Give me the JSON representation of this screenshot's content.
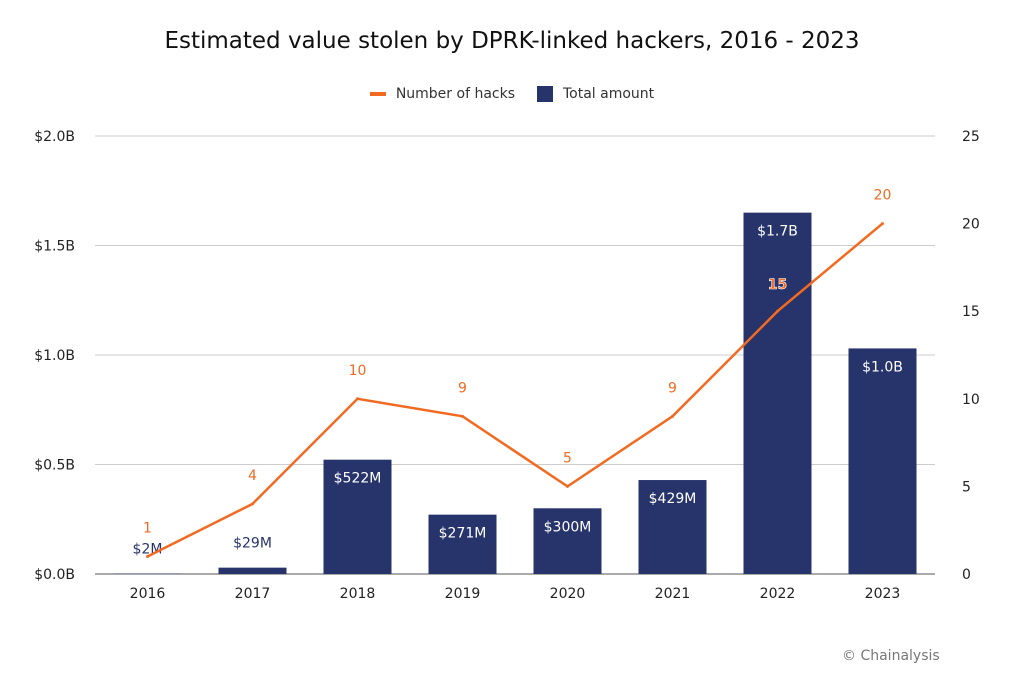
{
  "chart_data": {
    "type": "bar",
    "title": "Estimated value stolen by DPRK-linked hackers, 2016 - 2023",
    "categories": [
      "2016",
      "2017",
      "2018",
      "2019",
      "2020",
      "2021",
      "2022",
      "2023"
    ],
    "series": [
      {
        "name": "Total amount",
        "type": "bar",
        "axis": "left",
        "unit": "USD billions",
        "values": [
          0.002,
          0.029,
          0.522,
          0.271,
          0.3,
          0.429,
          1.65,
          1.03
        ],
        "labels": [
          "$2M",
          "$29M",
          "$522M",
          "$271M",
          "$300M",
          "$429M",
          "$1.7B",
          "$1.0B"
        ],
        "color": "#27336b"
      },
      {
        "name": "Number of hacks",
        "type": "line",
        "axis": "right",
        "values": [
          1,
          4,
          10,
          9,
          5,
          9,
          15,
          20
        ],
        "labels": [
          "1",
          "4",
          "10",
          "9",
          "5",
          "9",
          "15",
          "20"
        ],
        "color": "#f26a21"
      }
    ],
    "left_axis": {
      "ylim": [
        0,
        2.0
      ],
      "ticks": [
        "$0.0B",
        "$0.5B",
        "$1.0B",
        "$1.5B",
        "$2.0B"
      ]
    },
    "right_axis": {
      "ylim": [
        0,
        25
      ],
      "ticks": [
        "0",
        "5",
        "10",
        "15",
        "20",
        "25"
      ]
    },
    "grid": true,
    "legend": "top-center"
  },
  "legend": {
    "line_label": "Number of hacks",
    "bar_label": "Total amount"
  },
  "credit": "© Chainalysis"
}
